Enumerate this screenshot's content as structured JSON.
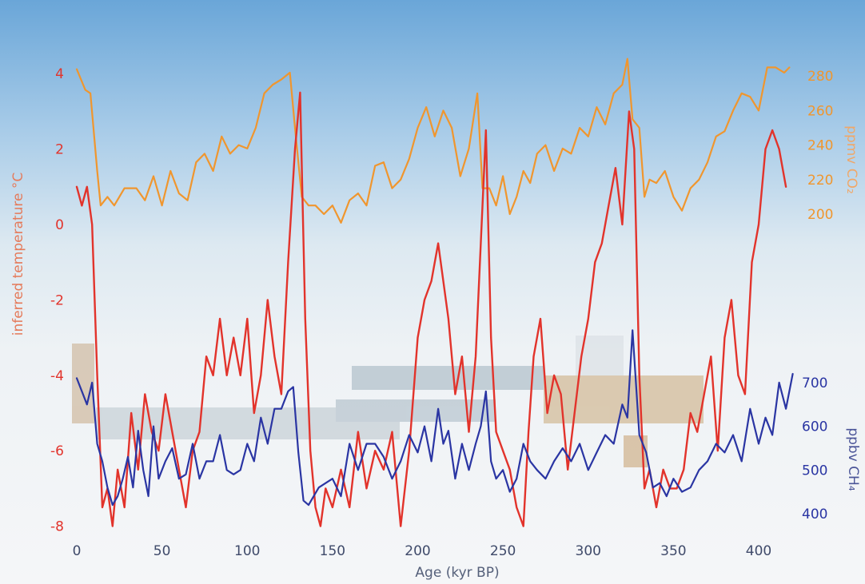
{
  "chart_data": {
    "type": "line",
    "xlabel": "Age (kyr BP)",
    "x_ticks": [
      0,
      50,
      100,
      150,
      200,
      250,
      300,
      350,
      400
    ],
    "xlim": [
      0,
      422
    ],
    "colors": {
      "co2": "#f0962e",
      "temperature": "#e2332b",
      "ch4": "#2a35a3",
      "sky": "#7fb4df",
      "snow": "#f4f6f8"
    },
    "axes": {
      "temperature": {
        "label": "inferred temperature °C",
        "ticks": [
          "4",
          "2",
          "0",
          "-2",
          "-4",
          "-6",
          "-8"
        ],
        "range": [
          -8,
          4
        ],
        "position": "left"
      },
      "co2": {
        "label": "ppmv CO₂",
        "ticks": [
          "280",
          "260",
          "240",
          "220",
          "200"
        ],
        "range": [
          200,
          280
        ],
        "position": "right-top"
      },
      "ch4": {
        "label": "ppbv CH₄",
        "ticks": [
          "700",
          "600",
          "500",
          "400"
        ],
        "range": [
          400,
          700
        ],
        "position": "right-bottom"
      }
    },
    "series": [
      {
        "key": "co2",
        "x": [
          0,
          5,
          8,
          12,
          14,
          18,
          22,
          28,
          35,
          40,
          45,
          50,
          55,
          60,
          65,
          70,
          75,
          80,
          85,
          90,
          95,
          100,
          105,
          110,
          115,
          120,
          125,
          128,
          132,
          136,
          140,
          145,
          150,
          155,
          160,
          165,
          170,
          175,
          180,
          185,
          190,
          195,
          200,
          205,
          210,
          215,
          220,
          225,
          230,
          235,
          238,
          242,
          246,
          250,
          254,
          258,
          262,
          266,
          270,
          275,
          280,
          285,
          290,
          295,
          300,
          305,
          310,
          315,
          320,
          323,
          326,
          330,
          333,
          336,
          340,
          345,
          350,
          355,
          360,
          365,
          370,
          375,
          380,
          385,
          390,
          395,
          400,
          405,
          410,
          415,
          418
        ],
        "y": [
          284,
          272,
          270,
          225,
          205,
          210,
          205,
          215,
          215,
          208,
          222,
          205,
          225,
          212,
          208,
          230,
          235,
          225,
          245,
          235,
          240,
          238,
          250,
          270,
          275,
          278,
          282,
          250,
          210,
          205,
          205,
          200,
          205,
          195,
          208,
          212,
          205,
          228,
          230,
          215,
          220,
          232,
          250,
          262,
          245,
          260,
          250,
          222,
          238,
          270,
          215,
          215,
          205,
          222,
          200,
          210,
          225,
          218,
          235,
          240,
          225,
          238,
          235,
          250,
          245,
          262,
          252,
          270,
          275,
          290,
          255,
          250,
          210,
          220,
          218,
          225,
          210,
          202,
          215,
          220,
          230,
          245,
          248,
          260,
          270,
          268,
          260,
          285,
          285,
          282,
          285
        ],
        "name": ""
      },
      {
        "key": "temperature",
        "x": [
          0,
          3,
          6,
          9,
          12,
          15,
          18,
          21,
          24,
          28,
          32,
          36,
          40,
          44,
          48,
          52,
          56,
          60,
          64,
          68,
          72,
          76,
          80,
          84,
          88,
          92,
          96,
          100,
          104,
          108,
          112,
          116,
          120,
          124,
          128,
          131,
          134,
          137,
          140,
          143,
          146,
          150,
          155,
          160,
          165,
          170,
          175,
          180,
          185,
          190,
          195,
          200,
          204,
          208,
          212,
          215,
          218,
          222,
          226,
          230,
          234,
          237,
          240,
          243,
          246,
          250,
          254,
          258,
          262,
          265,
          268,
          272,
          276,
          280,
          284,
          288,
          292,
          296,
          300,
          304,
          308,
          312,
          316,
          320,
          324,
          327,
          330,
          333,
          336,
          340,
          344,
          348,
          352,
          356,
          360,
          364,
          368,
          372,
          376,
          380,
          384,
          388,
          392,
          396,
          400,
          404,
          408,
          412,
          416
        ],
        "y": [
          1,
          0.5,
          1,
          0,
          -4,
          -7.5,
          -7,
          -8,
          -6.5,
          -7.5,
          -5,
          -6.5,
          -4.5,
          -5.5,
          -6,
          -4.5,
          -5.5,
          -6.5,
          -7.5,
          -6,
          -5.5,
          -3.5,
          -4,
          -2.5,
          -4,
          -3,
          -4,
          -2.5,
          -5,
          -4,
          -2,
          -3.5,
          -4.5,
          -1,
          2,
          3.5,
          -2.5,
          -6,
          -7.5,
          -8,
          -7,
          -7.5,
          -6.5,
          -7.5,
          -5.5,
          -7,
          -6,
          -6.5,
          -5.5,
          -8,
          -6,
          -3,
          -2,
          -1.5,
          -0.5,
          -1.5,
          -2.5,
          -4.5,
          -3.5,
          -5.5,
          -3.5,
          -0.5,
          2.5,
          -3,
          -5.5,
          -6,
          -6.5,
          -7.5,
          -8,
          -5.5,
          -3.5,
          -2.5,
          -5,
          -4,
          -4.5,
          -6.5,
          -5,
          -3.5,
          -2.5,
          -1,
          -0.5,
          0.5,
          1.5,
          0,
          3,
          2,
          -4,
          -7,
          -6.5,
          -7.5,
          -6.5,
          -7,
          -7,
          -6.5,
          -5,
          -5.5,
          -4.5,
          -3.5,
          -6,
          -3,
          -2,
          -4,
          -4.5,
          -1,
          0,
          2,
          2.5,
          2,
          1
        ],
        "name": ""
      },
      {
        "key": "ch4",
        "x": [
          0,
          3,
          6,
          9,
          12,
          15,
          18,
          21,
          24,
          27,
          30,
          33,
          36,
          39,
          42,
          45,
          48,
          52,
          56,
          60,
          64,
          68,
          72,
          76,
          80,
          84,
          88,
          92,
          96,
          100,
          104,
          108,
          112,
          116,
          120,
          124,
          127,
          130,
          133,
          136,
          139,
          142,
          146,
          150,
          155,
          160,
          165,
          170,
          175,
          180,
          185,
          190,
          195,
          200,
          204,
          208,
          212,
          215,
          218,
          222,
          226,
          230,
          234,
          237,
          240,
          243,
          246,
          250,
          254,
          258,
          262,
          266,
          270,
          275,
          280,
          285,
          290,
          295,
          300,
          305,
          310,
          315,
          320,
          323,
          326,
          330,
          334,
          338,
          342,
          346,
          350,
          355,
          360,
          365,
          370,
          375,
          380,
          385,
          390,
          395,
          400,
          404,
          408,
          412,
          416,
          420
        ],
        "y": [
          710,
          680,
          650,
          700,
          560,
          520,
          460,
          420,
          440,
          480,
          530,
          460,
          590,
          500,
          440,
          600,
          480,
          520,
          550,
          480,
          490,
          560,
          480,
          520,
          520,
          580,
          500,
          490,
          500,
          560,
          520,
          620,
          560,
          640,
          640,
          680,
          690,
          540,
          430,
          420,
          440,
          460,
          470,
          480,
          440,
          560,
          500,
          560,
          560,
          530,
          480,
          520,
          580,
          540,
          600,
          520,
          640,
          560,
          590,
          480,
          560,
          500,
          560,
          600,
          680,
          520,
          480,
          500,
          450,
          480,
          560,
          520,
          500,
          480,
          520,
          550,
          520,
          560,
          500,
          540,
          580,
          560,
          650,
          620,
          820,
          580,
          540,
          460,
          470,
          440,
          480,
          450,
          460,
          500,
          520,
          560,
          540,
          580,
          520,
          640,
          560,
          620,
          580,
          700,
          640,
          720
        ],
        "name": ""
      }
    ]
  }
}
